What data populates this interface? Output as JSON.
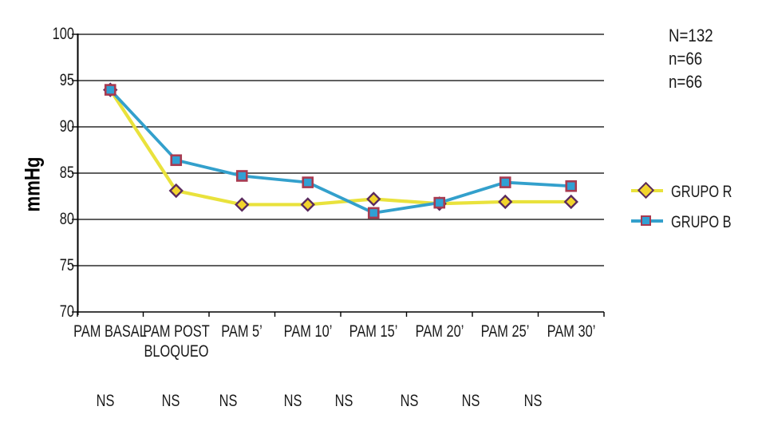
{
  "chart_data": {
    "type": "line",
    "title": "",
    "ylabel": "mmHg",
    "xlabel": "",
    "categories": [
      "PAM BASAL",
      "PAM POST BLOQUEO",
      "PAM 5’",
      "PAM 10’",
      "PAM 15’",
      "PAM 20’",
      "PAM 25’",
      "PAM 30’"
    ],
    "ylim": [
      70,
      100
    ],
    "yticks": [
      70,
      75,
      80,
      85,
      90,
      95,
      100
    ],
    "grid": "horizontal-gridlines-on",
    "legend_position": "right",
    "series": [
      {
        "name": "GRUPO R",
        "marker": "diamond",
        "line_color": "#e9e23c",
        "marker_fill": "#f2d42c",
        "marker_border": "#5a2a5e",
        "values": [
          94,
          83.1,
          81.6,
          81.6,
          82.2,
          81.7,
          81.9,
          81.9
        ]
      },
      {
        "name": "GRUPO B",
        "marker": "square",
        "line_color": "#33a0cc",
        "marker_fill": "#30a0d4",
        "marker_border": "#a83a50",
        "values": [
          94,
          86.4,
          84.7,
          84,
          80.7,
          81.8,
          84,
          83.6
        ]
      }
    ],
    "significance_row": [
      "NS",
      "NS",
      "NS",
      "NS",
      "NS",
      "NS",
      "NS",
      "NS"
    ],
    "axis_color": "#000000"
  },
  "annotation": {
    "lines": [
      "N=132",
      "n=66",
      "n=66"
    ]
  }
}
